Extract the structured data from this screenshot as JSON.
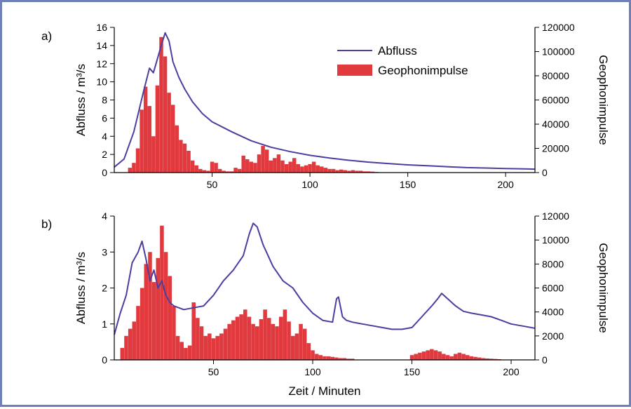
{
  "chart_data": [
    {
      "type": "bar+line",
      "panel_label": "a)",
      "xlim": [
        0,
        215
      ],
      "xticks": [
        50,
        100,
        150,
        200
      ],
      "left_axis": {
        "label": "Abfluss / m³/s",
        "lim": [
          0,
          16
        ],
        "ticks": [
          0,
          2,
          4,
          6,
          8,
          10,
          12,
          14,
          16
        ]
      },
      "right_axis": {
        "label": "Geophonimpulse",
        "lim": [
          0,
          120000
        ],
        "ticks": [
          0,
          20000,
          40000,
          60000,
          80000,
          100000,
          120000
        ]
      },
      "legend": {
        "placement": "top-center",
        "entries": [
          "Abfluss",
          "Geophonimpulse"
        ]
      },
      "series": [
        {
          "name": "Abfluss",
          "type": "line",
          "axis": "left",
          "x": [
            0,
            5,
            10,
            15,
            18,
            20,
            22,
            24,
            26,
            28,
            30,
            33,
            36,
            40,
            45,
            50,
            60,
            70,
            80,
            90,
            100,
            110,
            120,
            130,
            140,
            150,
            160,
            170,
            180,
            190,
            200,
            210,
            215
          ],
          "y": [
            0.6,
            1.5,
            4.5,
            9.0,
            11.5,
            11.0,
            12.5,
            14.0,
            15.4,
            14.5,
            12.2,
            10.5,
            9.2,
            7.8,
            6.5,
            5.6,
            4.5,
            3.5,
            2.8,
            2.3,
            1.9,
            1.6,
            1.35,
            1.15,
            1.0,
            0.85,
            0.75,
            0.65,
            0.55,
            0.5,
            0.45,
            0.4,
            0.38
          ]
        },
        {
          "name": "Geophonimpulse",
          "type": "bar",
          "axis": "right",
          "x": [
            8,
            10,
            12,
            14,
            16,
            18,
            20,
            22,
            24,
            26,
            28,
            30,
            32,
            34,
            36,
            38,
            40,
            42,
            44,
            46,
            48,
            50,
            52,
            54,
            56,
            58,
            60,
            62,
            64,
            66,
            68,
            70,
            72,
            74,
            76,
            78,
            80,
            82,
            84,
            86,
            88,
            90,
            92,
            94,
            96,
            98,
            100,
            102,
            104,
            106,
            108,
            110,
            112,
            114,
            116,
            118,
            120,
            122,
            124,
            126,
            128,
            130,
            132,
            134
          ],
          "y": [
            4000,
            8000,
            20000,
            52000,
            71000,
            55000,
            30000,
            72000,
            112000,
            96000,
            66000,
            56000,
            39000,
            27000,
            24000,
            18000,
            10000,
            6000,
            3000,
            2000,
            1500,
            9000,
            8000,
            3000,
            1500,
            1000,
            1000,
            4000,
            3000,
            14000,
            11000,
            9000,
            8000,
            15000,
            22000,
            19000,
            10000,
            12000,
            15000,
            10000,
            7000,
            9000,
            12000,
            7000,
            5000,
            6000,
            7000,
            9000,
            6000,
            5000,
            4000,
            3000,
            3000,
            2000,
            2500,
            2000,
            1500,
            2000,
            1500,
            1500,
            1000,
            1000,
            800,
            500
          ]
        }
      ]
    },
    {
      "type": "bar+line",
      "panel_label": "b)",
      "xlim": [
        0,
        212
      ],
      "xticks": [
        50,
        100,
        150,
        200
      ],
      "xlabel": "Zeit / Minuten",
      "left_axis": {
        "label": "Abfluss / m³/s",
        "lim": [
          0,
          4
        ],
        "ticks": [
          0,
          1,
          2,
          3,
          4
        ]
      },
      "right_axis": {
        "label": "Geophonimpulse",
        "lim": [
          0,
          12000
        ],
        "ticks": [
          0,
          2000,
          4000,
          6000,
          8000,
          10000,
          12000
        ]
      },
      "series": [
        {
          "name": "Abfluss",
          "type": "line",
          "axis": "left",
          "x": [
            0,
            3,
            6,
            9,
            12,
            14,
            16,
            18,
            20,
            22,
            24,
            26,
            28,
            30,
            35,
            40,
            45,
            50,
            55,
            60,
            65,
            68,
            70,
            72,
            75,
            80,
            85,
            90,
            95,
            100,
            105,
            110,
            112,
            113,
            115,
            117,
            120,
            125,
            130,
            135,
            140,
            145,
            150,
            155,
            160,
            163,
            165,
            168,
            172,
            176,
            180,
            185,
            190,
            195,
            200,
            205,
            212
          ],
          "y": [
            0.7,
            1.3,
            1.8,
            2.7,
            3.0,
            3.3,
            2.8,
            2.2,
            2.5,
            2.0,
            2.2,
            1.8,
            1.6,
            1.5,
            1.4,
            1.45,
            1.5,
            1.8,
            2.2,
            2.5,
            2.9,
            3.5,
            3.8,
            3.7,
            3.2,
            2.6,
            2.2,
            2.0,
            1.6,
            1.3,
            1.1,
            1.05,
            1.7,
            1.75,
            1.2,
            1.1,
            1.05,
            1.0,
            0.95,
            0.9,
            0.85,
            0.85,
            0.9,
            1.2,
            1.5,
            1.7,
            1.85,
            1.7,
            1.5,
            1.35,
            1.3,
            1.25,
            1.2,
            1.1,
            1.0,
            0.95,
            0.88
          ]
        },
        {
          "name": "Geophonimpulse",
          "type": "bar",
          "axis": "right",
          "x": [
            4,
            6,
            8,
            10,
            12,
            14,
            16,
            18,
            20,
            22,
            24,
            26,
            28,
            30,
            32,
            34,
            36,
            38,
            40,
            42,
            44,
            46,
            48,
            50,
            52,
            54,
            56,
            58,
            60,
            62,
            64,
            66,
            68,
            70,
            72,
            74,
            76,
            78,
            80,
            82,
            84,
            86,
            88,
            90,
            92,
            94,
            96,
            98,
            100,
            102,
            104,
            106,
            108,
            110,
            112,
            114,
            116,
            118,
            120,
            150,
            152,
            154,
            156,
            158,
            160,
            162,
            164,
            166,
            168,
            170,
            172,
            174,
            176,
            178,
            180,
            182,
            184,
            186,
            188,
            190,
            192,
            194
          ],
          "y": [
            1000,
            2000,
            2600,
            3200,
            4500,
            6000,
            8000,
            9000,
            6500,
            8500,
            11200,
            9000,
            7000,
            4500,
            2000,
            1500,
            1000,
            1200,
            4800,
            3500,
            2800,
            2000,
            2200,
            1800,
            2000,
            2200,
            2600,
            3000,
            3300,
            3600,
            3800,
            4200,
            3600,
            3000,
            2800,
            3400,
            4200,
            3500,
            3000,
            2800,
            3600,
            4200,
            3200,
            2000,
            2200,
            3000,
            2600,
            1400,
            800,
            500,
            400,
            300,
            300,
            250,
            200,
            150,
            150,
            100,
            100,
            400,
            500,
            600,
            700,
            800,
            900,
            800,
            700,
            500,
            400,
            300,
            500,
            600,
            500,
            400,
            300,
            250,
            200,
            150,
            120,
            100,
            80,
            60
          ]
        }
      ]
    }
  ]
}
